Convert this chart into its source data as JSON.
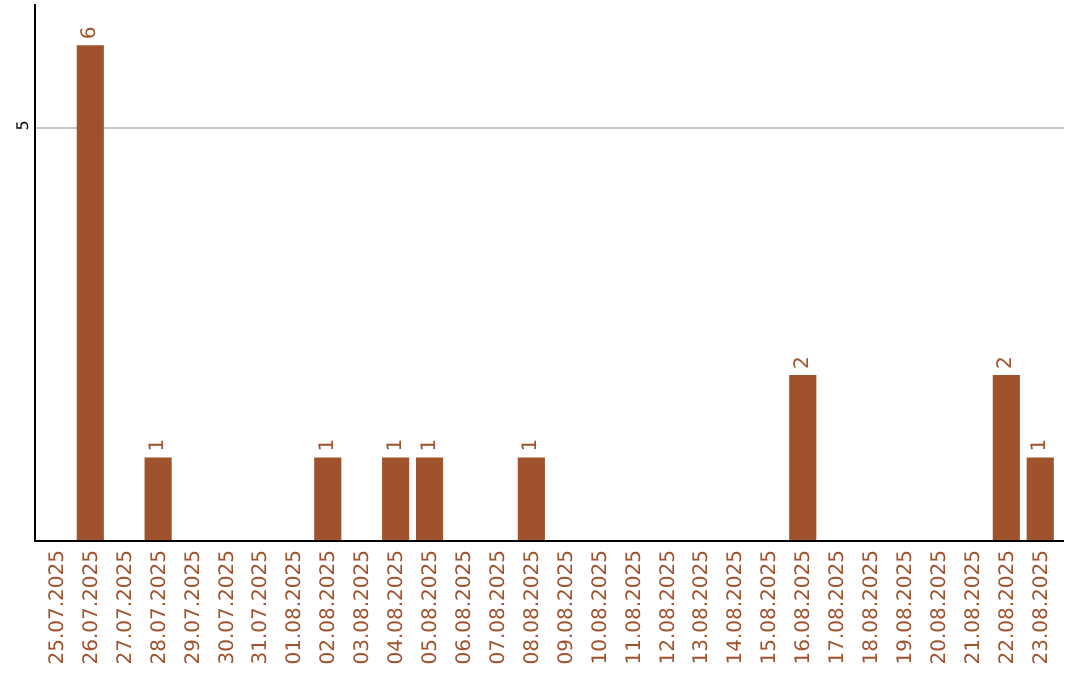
{
  "chart_data": {
    "type": "bar",
    "categories": [
      "25.07.2025",
      "26.07.2025",
      "27.07.2025",
      "28.07.2025",
      "29.07.2025",
      "30.07.2025",
      "31.07.2025",
      "01.08.2025",
      "02.08.2025",
      "03.08.2025",
      "04.08.2025",
      "05.08.2025",
      "06.08.2025",
      "07.08.2025",
      "08.08.2025",
      "09.08.2025",
      "10.08.2025",
      "11.08.2025",
      "12.08.2025",
      "13.08.2025",
      "14.08.2025",
      "15.08.2025",
      "16.08.2025",
      "17.08.2025",
      "18.08.2025",
      "19.08.2025",
      "20.08.2025",
      "21.08.2025",
      "22.08.2025",
      "23.08.2025"
    ],
    "values": [
      0,
      6,
      0,
      1,
      0,
      0,
      0,
      0,
      1,
      0,
      1,
      1,
      0,
      0,
      1,
      0,
      0,
      0,
      0,
      0,
      0,
      0,
      2,
      0,
      0,
      0,
      0,
      0,
      2,
      1
    ],
    "value_labels": [
      null,
      "6",
      null,
      "1",
      null,
      null,
      null,
      null,
      "1",
      null,
      "1",
      "1",
      null,
      null,
      "1",
      null,
      null,
      null,
      null,
      null,
      null,
      null,
      "2",
      null,
      null,
      null,
      null,
      null,
      "2",
      "1"
    ],
    "color": "#a0522d",
    "ylim": [
      0,
      6.5
    ],
    "yticks": [
      5
    ],
    "grid": "y",
    "legend": false
  }
}
